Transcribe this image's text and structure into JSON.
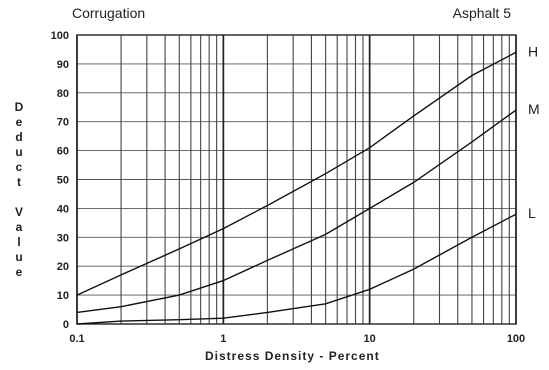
{
  "chart_data": {
    "type": "line",
    "title_left": "Corrugation",
    "title_right": "Asphalt 5",
    "xlabel": "Distress Density - Percent",
    "ylabel": "Deduct Value",
    "x_scale": "log",
    "xlim": [
      0.1,
      100
    ],
    "ylim": [
      0,
      100
    ],
    "x_tick_labels": [
      {
        "value": 0.1,
        "label": "0.1"
      },
      {
        "value": 1,
        "label": "1"
      },
      {
        "value": 10,
        "label": "10"
      },
      {
        "value": 100,
        "label": "100"
      }
    ],
    "y_ticks": [
      0,
      10,
      20,
      30,
      40,
      50,
      60,
      70,
      80,
      90,
      100
    ],
    "grid": true,
    "series": [
      {
        "name": "H",
        "x": [
          0.1,
          0.2,
          0.5,
          1,
          2,
          5,
          10,
          20,
          50,
          100
        ],
        "y": [
          10,
          17,
          26,
          33,
          41,
          52,
          61,
          72,
          86,
          94
        ]
      },
      {
        "name": "M",
        "x": [
          0.1,
          0.2,
          0.5,
          1,
          2,
          5,
          10,
          20,
          50,
          100
        ],
        "y": [
          4,
          6,
          10,
          15,
          22,
          31,
          40,
          49,
          63,
          74
        ]
      },
      {
        "name": "L",
        "x": [
          0.1,
          0.2,
          0.5,
          1,
          2,
          5,
          10,
          20,
          50,
          100
        ],
        "y": [
          0,
          1,
          1.5,
          2,
          4,
          7,
          12,
          19,
          30,
          38
        ]
      }
    ]
  }
}
